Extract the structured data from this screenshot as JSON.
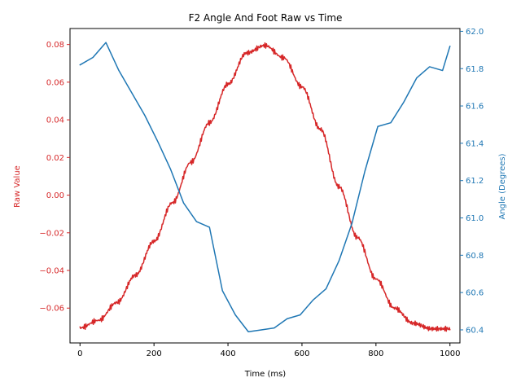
{
  "chart_data": {
    "type": "line",
    "title": "F2 Angle And Foot Raw vs Time",
    "xlabel": "Time (ms)",
    "ylabel_left": "Raw Value",
    "ylabel_right": "Angle (Degrees)",
    "xlim": [
      -27,
      1027
    ],
    "ylim_left": [
      -0.0785,
      0.0885
    ],
    "ylim_right": [
      60.33,
      62.015
    ],
    "x_ticks": [
      0,
      200,
      400,
      600,
      800,
      1000
    ],
    "x_tick_labels": [
      "0",
      "200",
      "400",
      "600",
      "800",
      "1000"
    ],
    "y_left_ticks": [
      -0.06,
      -0.04,
      -0.02,
      0.0,
      0.02,
      0.04,
      0.06,
      0.08
    ],
    "y_left_tick_labels": [
      "−0.06",
      "−0.04",
      "−0.02",
      "0.00",
      "0.02",
      "0.04",
      "0.06",
      "0.08"
    ],
    "y_right_ticks": [
      60.4,
      60.6,
      60.8,
      61.0,
      61.2,
      61.4,
      61.6,
      61.8,
      62.0
    ],
    "y_right_tick_labels": [
      "60.4",
      "60.6",
      "60.8",
      "61.0",
      "61.2",
      "61.4",
      "61.6",
      "61.8",
      "62.0"
    ],
    "grid": false,
    "left_color": "#d62728",
    "right_color": "#1f77b4",
    "series": [
      {
        "axis": "left",
        "color": "#d62728",
        "x": [
          0,
          50,
          100,
          150,
          200,
          250,
          300,
          350,
          400,
          450,
          500,
          550,
          600,
          650,
          700,
          750,
          800,
          850,
          900,
          950,
          1000
        ],
        "values": [
          -0.0705,
          -0.0665,
          -0.057,
          -0.0425,
          -0.0245,
          -0.004,
          0.0175,
          0.0385,
          0.059,
          0.0755,
          0.0795,
          0.073,
          0.0575,
          0.035,
          0.0045,
          -0.0225,
          -0.0445,
          -0.06,
          -0.068,
          -0.071,
          -0.071
        ]
      },
      {
        "axis": "right",
        "color": "#1f77b4",
        "x": [
          0,
          35,
          70,
          105,
          140,
          175,
          210,
          245,
          280,
          315,
          350,
          385,
          420,
          455,
          490,
          525,
          560,
          595,
          630,
          665,
          700,
          735,
          770,
          805,
          840,
          875,
          910,
          945,
          980,
          1000
        ],
        "values": [
          61.82,
          61.86,
          61.94,
          61.79,
          61.67,
          61.55,
          61.41,
          61.26,
          61.08,
          60.98,
          60.95,
          60.61,
          60.48,
          60.39,
          60.4,
          60.41,
          60.46,
          60.48,
          60.56,
          60.62,
          60.77,
          60.97,
          61.25,
          61.49,
          61.51,
          61.62,
          61.75,
          61.81,
          61.79,
          61.92
        ]
      }
    ]
  }
}
